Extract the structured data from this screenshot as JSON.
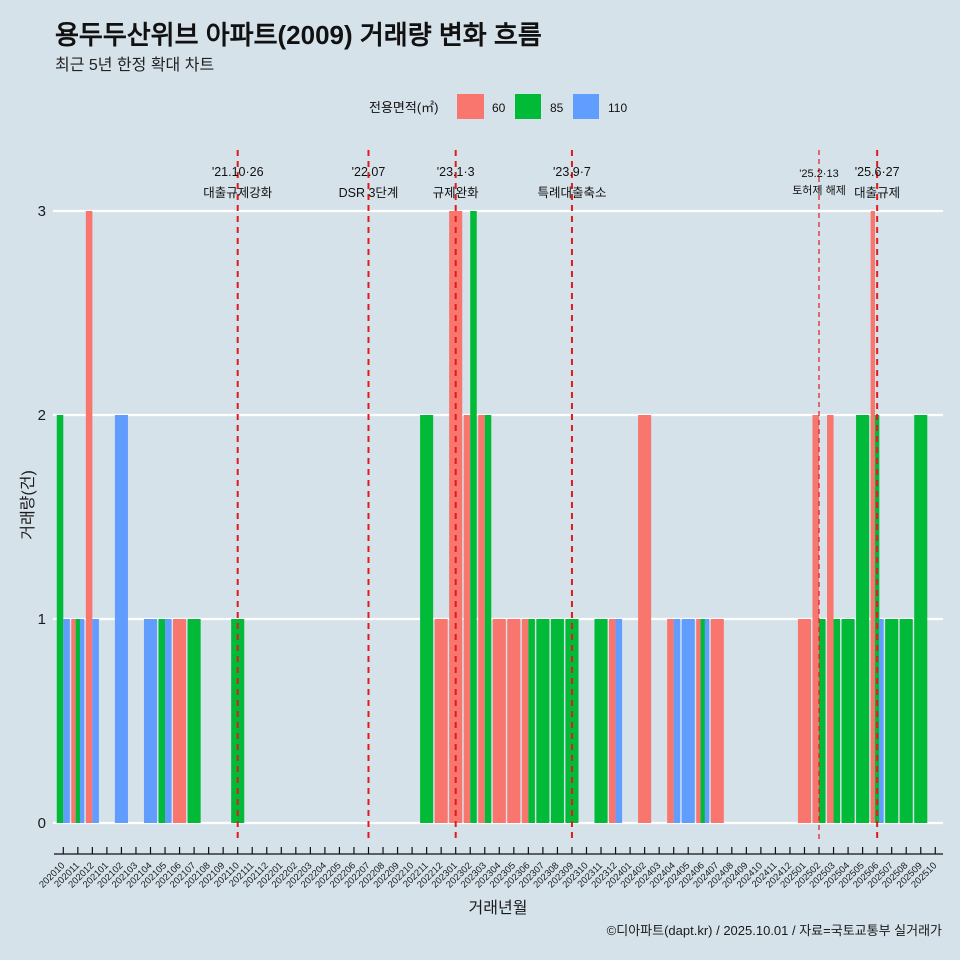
{
  "chart_data": {
    "type": "bar",
    "position": "dodge",
    "title": "용두두산위브 아파트(2009) 거래량 변화 흐름",
    "subtitle": "최근 5년 한정 확대 차트",
    "xlabel": "거래년월",
    "ylabel": "거래량(건)",
    "caption": "©디아파트(dapt.kr) / 2025.10.01 / 자료=국토교통부 실거래가",
    "ylim": [
      0,
      3
    ],
    "yticks": [
      "0",
      "1",
      "2",
      "3"
    ],
    "grid": "horizontal",
    "legend_position": "top",
    "legend_title": "전용면적(㎡)",
    "categories": [
      "202010",
      "202011",
      "202012",
      "202101",
      "202102",
      "202103",
      "202104",
      "202105",
      "202106",
      "202107",
      "202108",
      "202109",
      "202110",
      "202111",
      "202112",
      "202201",
      "202202",
      "202203",
      "202204",
      "202205",
      "202206",
      "202207",
      "202208",
      "202209",
      "202210",
      "202211",
      "202212",
      "202301",
      "202302",
      "202303",
      "202304",
      "202305",
      "202306",
      "202307",
      "202308",
      "202309",
      "202310",
      "202311",
      "202312",
      "202401",
      "202402",
      "202403",
      "202404",
      "202405",
      "202406",
      "202407",
      "202408",
      "202409",
      "202410",
      "202411",
      "202412",
      "202501",
      "202502",
      "202503",
      "202504",
      "202505",
      "202506",
      "202507",
      "202508",
      "202509",
      "202510"
    ],
    "series": [
      {
        "name": "60",
        "color": "#F8766D",
        "values": [
          0,
          1,
          3,
          0,
          0,
          0,
          0,
          0,
          1,
          0,
          0,
          0,
          0,
          0,
          0,
          0,
          0,
          0,
          0,
          0,
          0,
          0,
          0,
          0,
          0,
          0,
          1,
          3,
          2,
          2,
          1,
          1,
          1,
          0,
          0,
          0,
          0,
          0,
          1,
          0,
          2,
          0,
          1,
          0,
          1,
          1,
          0,
          0,
          0,
          0,
          0,
          1,
          2,
          2,
          0,
          0,
          3,
          0,
          0,
          0,
          0
        ]
      },
      {
        "name": "85",
        "color": "#00BA38",
        "values": [
          2,
          1,
          0,
          0,
          0,
          0,
          0,
          1,
          0,
          1,
          0,
          0,
          1,
          0,
          0,
          0,
          0,
          0,
          0,
          0,
          0,
          0,
          0,
          0,
          0,
          2,
          0,
          0,
          3,
          2,
          0,
          0,
          1,
          1,
          1,
          1,
          0,
          1,
          0,
          0,
          0,
          0,
          0,
          0,
          1,
          0,
          0,
          0,
          0,
          0,
          0,
          0,
          1,
          1,
          1,
          2,
          2,
          1,
          1,
          2,
          0
        ]
      },
      {
        "name": "110",
        "color": "#619CFF",
        "values": [
          1,
          1,
          1,
          0,
          2,
          0,
          1,
          1,
          0,
          0,
          0,
          0,
          0,
          0,
          0,
          0,
          0,
          0,
          0,
          0,
          0,
          0,
          0,
          0,
          0,
          0,
          0,
          0,
          0,
          0,
          0,
          0,
          0,
          0,
          0,
          0,
          0,
          0,
          1,
          0,
          0,
          0,
          1,
          1,
          1,
          0,
          0,
          0,
          0,
          0,
          0,
          0,
          0,
          0,
          0,
          0,
          1,
          0,
          0,
          0,
          0
        ]
      }
    ],
    "annotations": [
      {
        "at": "202110",
        "date": "'21.10·26",
        "label": "대출규제강화"
      },
      {
        "at": "202207",
        "date": "'22.07",
        "label": "DSR 3단계"
      },
      {
        "at": "202301",
        "date": "'23.1·3",
        "label": "규제완화"
      },
      {
        "at": "202309",
        "date": "'23.9·7",
        "label": "특례대출축소"
      },
      {
        "at": "202502",
        "date": "'25.2·13",
        "label": "토허제 해제"
      },
      {
        "at": "202506",
        "date": "'25.6·27",
        "label": "대출규제"
      }
    ],
    "annotation_color": "#e31a1c",
    "background_color": "#d6e2ea"
  }
}
